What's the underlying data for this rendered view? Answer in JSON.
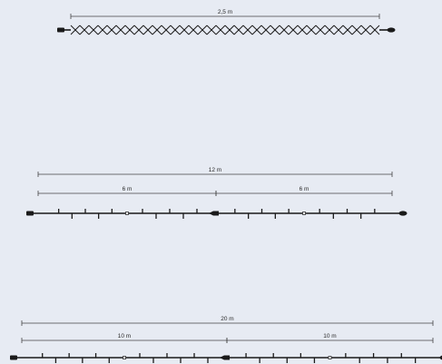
{
  "colors": {
    "background": "#e7ebf3",
    "line": "#1a1a1a",
    "dimension": "#444444"
  },
  "diagrams": [
    {
      "kind": "crossed-string",
      "total_label": "2,5 m",
      "segment_labels": [],
      "connector_icon": "plug-connector-icon",
      "end_cap_icon": "end-cap-icon"
    },
    {
      "kind": "pendant-string",
      "total_label": "12 m",
      "segment_labels": [
        "6 m",
        "6 m"
      ],
      "connector_icon": "plug-connector-icon",
      "end_cap_icon": "end-cap-icon"
    },
    {
      "kind": "pendant-string",
      "total_label": "20 m",
      "segment_labels": [
        "10 m",
        "10 m"
      ],
      "connector_icon": "plug-connector-icon",
      "end_cap_icon": "end-cap-icon"
    }
  ]
}
